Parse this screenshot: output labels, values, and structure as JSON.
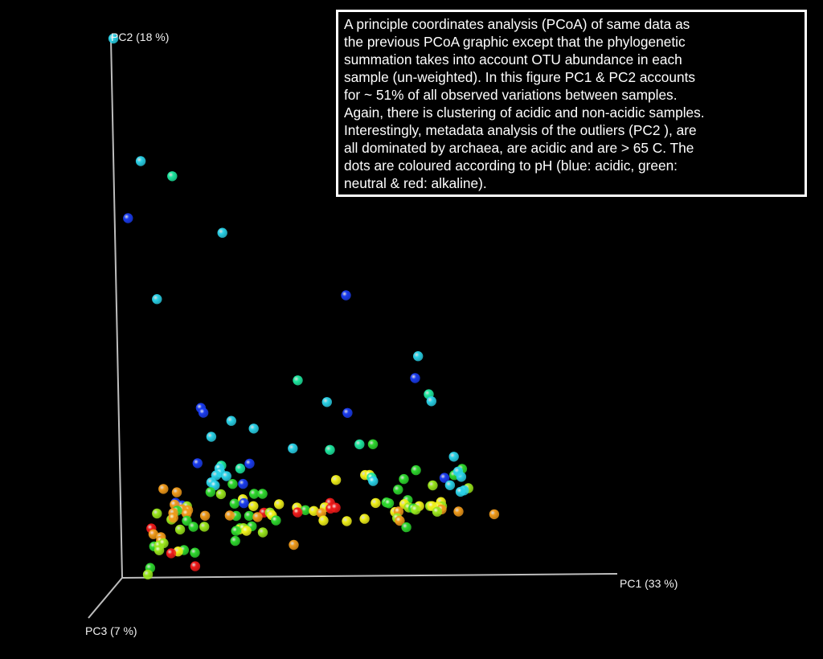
{
  "chart_data": {
    "type": "scatter",
    "title": "",
    "axes": {
      "x_label": "PC1 (33 %)",
      "y_label": "PC2 (18 %)",
      "z_label": "PC3 (7 %)"
    },
    "projection": "3d",
    "grid": false,
    "legend": "none",
    "colors": {
      "blue": "#1a3cf0",
      "cyan": "#2ad2e8",
      "teal": "#1ee8a0",
      "green": "#2ed82e",
      "lime": "#9ae61c",
      "yellow": "#f0f01a",
      "orange": "#f09a1a",
      "red": "#f01a1a"
    },
    "points": [
      {
        "x": 0.005,
        "y": 1.23,
        "ph": "cyan"
      },
      {
        "x": 0.055,
        "y": 0.95,
        "ph": "cyan"
      },
      {
        "x": 0.118,
        "y": 0.915,
        "ph": "teal"
      },
      {
        "x": 0.027,
        "y": 0.82,
        "ph": "blue"
      },
      {
        "x": 0.217,
        "y": 0.785,
        "ph": "cyan"
      },
      {
        "x": 0.082,
        "y": 0.635,
        "ph": "cyan"
      },
      {
        "x": 0.464,
        "y": 0.64,
        "ph": "blue"
      },
      {
        "x": 0.607,
        "y": 0.5,
        "ph": "cyan"
      },
      {
        "x": 0.6,
        "y": 0.45,
        "ph": "blue"
      },
      {
        "x": 0.363,
        "y": 0.447,
        "ph": "teal"
      },
      {
        "x": 0.421,
        "y": 0.397,
        "ph": "cyan"
      },
      {
        "x": 0.627,
        "y": 0.413,
        "ph": "teal"
      },
      {
        "x": 0.632,
        "y": 0.397,
        "ph": "cyan"
      },
      {
        "x": 0.166,
        "y": 0.386,
        "ph": "blue"
      },
      {
        "x": 0.171,
        "y": 0.375,
        "ph": "blue"
      },
      {
        "x": 0.462,
        "y": 0.372,
        "ph": "blue"
      },
      {
        "x": 0.227,
        "y": 0.356,
        "ph": "cyan"
      },
      {
        "x": 0.272,
        "y": 0.338,
        "ph": "cyan"
      },
      {
        "x": 0.186,
        "y": 0.32,
        "ph": "cyan"
      },
      {
        "x": 0.485,
        "y": 0.3,
        "ph": "teal"
      },
      {
        "x": 0.512,
        "y": 0.3,
        "ph": "green"
      },
      {
        "x": 0.35,
        "y": 0.292,
        "ph": "cyan"
      },
      {
        "x": 0.425,
        "y": 0.288,
        "ph": "teal"
      },
      {
        "x": 0.675,
        "y": 0.27,
        "ph": "cyan"
      },
      {
        "x": 0.157,
        "y": 0.26,
        "ph": "blue"
      },
      {
        "x": 0.262,
        "y": 0.258,
        "ph": "blue"
      },
      {
        "x": 0.205,
        "y": 0.254,
        "ph": "teal"
      },
      {
        "x": 0.201,
        "y": 0.248,
        "ph": "cyan"
      },
      {
        "x": 0.243,
        "y": 0.247,
        "ph": "teal"
      },
      {
        "x": 0.598,
        "y": 0.24,
        "ph": "green"
      },
      {
        "x": 0.691,
        "y": 0.242,
        "ph": "green"
      },
      {
        "x": 0.203,
        "y": 0.238,
        "ph": "cyan"
      },
      {
        "x": 0.194,
        "y": 0.232,
        "ph": "cyan"
      },
      {
        "x": 0.215,
        "y": 0.23,
        "ph": "cyan"
      },
      {
        "x": 0.495,
        "y": 0.23,
        "ph": "yellow"
      },
      {
        "x": 0.504,
        "y": 0.23,
        "ph": "yellow"
      },
      {
        "x": 0.508,
        "y": 0.224,
        "ph": "teal"
      },
      {
        "x": 0.511,
        "y": 0.216,
        "ph": "cyan"
      },
      {
        "x": 0.573,
        "y": 0.22,
        "ph": "green"
      },
      {
        "x": 0.675,
        "y": 0.228,
        "ph": "green"
      },
      {
        "x": 0.689,
        "y": 0.224,
        "ph": "cyan"
      },
      {
        "x": 0.683,
        "y": 0.236,
        "ph": "cyan"
      },
      {
        "x": 0.655,
        "y": 0.222,
        "ph": "blue"
      },
      {
        "x": 0.436,
        "y": 0.219,
        "ph": "yellow"
      },
      {
        "x": 0.184,
        "y": 0.216,
        "ph": "cyan"
      },
      {
        "x": 0.191,
        "y": 0.209,
        "ph": "cyan"
      },
      {
        "x": 0.227,
        "y": 0.212,
        "ph": "green"
      },
      {
        "x": 0.248,
        "y": 0.212,
        "ph": "blue"
      },
      {
        "x": 0.631,
        "y": 0.205,
        "ph": "lime"
      },
      {
        "x": 0.666,
        "y": 0.205,
        "ph": "cyan"
      },
      {
        "x": 0.703,
        "y": 0.198,
        "ph": "lime"
      },
      {
        "x": 0.694,
        "y": 0.193,
        "ph": "cyan"
      },
      {
        "x": 0.687,
        "y": 0.19,
        "ph": "cyan"
      },
      {
        "x": 0.087,
        "y": 0.202,
        "ph": "orange"
      },
      {
        "x": 0.114,
        "y": 0.194,
        "ph": "orange"
      },
      {
        "x": 0.182,
        "y": 0.194,
        "ph": "green"
      },
      {
        "x": 0.203,
        "y": 0.189,
        "ph": "lime"
      },
      {
        "x": 0.27,
        "y": 0.189,
        "ph": "green"
      },
      {
        "x": 0.287,
        "y": 0.189,
        "ph": "green"
      },
      {
        "x": 0.561,
        "y": 0.196,
        "ph": "green"
      },
      {
        "x": 0.247,
        "y": 0.177,
        "ph": "yellow"
      },
      {
        "x": 0.23,
        "y": 0.167,
        "ph": "green"
      },
      {
        "x": 0.249,
        "y": 0.168,
        "ph": "blue"
      },
      {
        "x": 0.58,
        "y": 0.172,
        "ph": "green"
      },
      {
        "x": 0.111,
        "y": 0.17,
        "ph": "blue"
      },
      {
        "x": 0.124,
        "y": 0.164,
        "ph": "blue"
      },
      {
        "x": 0.109,
        "y": 0.166,
        "ph": "orange"
      },
      {
        "x": 0.134,
        "y": 0.162,
        "ph": "lime"
      },
      {
        "x": 0.136,
        "y": 0.153,
        "ph": "orange"
      },
      {
        "x": 0.124,
        "y": 0.155,
        "ph": "orange"
      },
      {
        "x": 0.114,
        "y": 0.152,
        "ph": "green"
      },
      {
        "x": 0.073,
        "y": 0.146,
        "ph": "lime"
      },
      {
        "x": 0.268,
        "y": 0.161,
        "ph": "yellow"
      },
      {
        "x": 0.32,
        "y": 0.165,
        "ph": "yellow"
      },
      {
        "x": 0.515,
        "y": 0.166,
        "ph": "yellow"
      },
      {
        "x": 0.537,
        "y": 0.167,
        "ph": "green"
      },
      {
        "x": 0.542,
        "y": 0.165,
        "ph": "green"
      },
      {
        "x": 0.423,
        "y": 0.167,
        "ph": "red"
      },
      {
        "x": 0.573,
        "y": 0.163,
        "ph": "yellow"
      },
      {
        "x": 0.647,
        "y": 0.167,
        "ph": "yellow"
      },
      {
        "x": 0.625,
        "y": 0.158,
        "ph": "lime"
      },
      {
        "x": 0.649,
        "y": 0.157,
        "ph": "lime"
      },
      {
        "x": 0.64,
        "y": 0.156,
        "ph": "yellow"
      },
      {
        "x": 0.603,
        "y": 0.158,
        "ph": "yellow"
      },
      {
        "x": 0.629,
        "y": 0.158,
        "ph": "yellow"
      },
      {
        "x": 0.582,
        "y": 0.155,
        "ph": "lime"
      },
      {
        "x": 0.356,
        "y": 0.157,
        "ph": "yellow"
      },
      {
        "x": 0.412,
        "y": 0.157,
        "ph": "yellow"
      },
      {
        "x": 0.424,
        "y": 0.154,
        "ph": "red"
      },
      {
        "x": 0.434,
        "y": 0.156,
        "ph": "red"
      },
      {
        "x": 0.289,
        "y": 0.146,
        "ph": "red"
      },
      {
        "x": 0.301,
        "y": 0.146,
        "ph": "lime"
      },
      {
        "x": 0.305,
        "y": 0.14,
        "ph": "yellow"
      },
      {
        "x": 0.373,
        "y": 0.151,
        "ph": "green"
      },
      {
        "x": 0.39,
        "y": 0.149,
        "ph": "yellow"
      },
      {
        "x": 0.405,
        "y": 0.144,
        "ph": "orange"
      },
      {
        "x": 0.357,
        "y": 0.146,
        "ph": "red"
      },
      {
        "x": 0.591,
        "y": 0.153,
        "ph": "green"
      },
      {
        "x": 0.596,
        "y": 0.15,
        "ph": "lime"
      },
      {
        "x": 0.554,
        "y": 0.145,
        "ph": "yellow"
      },
      {
        "x": 0.561,
        "y": 0.146,
        "ph": "orange"
      },
      {
        "x": 0.648,
        "y": 0.15,
        "ph": "orange"
      },
      {
        "x": 0.639,
        "y": 0.145,
        "ph": "lime"
      },
      {
        "x": 0.682,
        "y": 0.145,
        "ph": "orange"
      },
      {
        "x": 0.233,
        "y": 0.139,
        "ph": "green"
      },
      {
        "x": 0.22,
        "y": 0.14,
        "ph": "orange"
      },
      {
        "x": 0.259,
        "y": 0.139,
        "ph": "green"
      },
      {
        "x": 0.17,
        "y": 0.14,
        "ph": "orange"
      },
      {
        "x": 0.106,
        "y": 0.147,
        "ph": "orange"
      },
      {
        "x": 0.133,
        "y": 0.145,
        "ph": "orange"
      },
      {
        "x": 0.276,
        "y": 0.136,
        "ph": "orange"
      },
      {
        "x": 0.313,
        "y": 0.128,
        "ph": "green"
      },
      {
        "x": 0.409,
        "y": 0.127,
        "ph": "yellow"
      },
      {
        "x": 0.456,
        "y": 0.125,
        "ph": "yellow"
      },
      {
        "x": 0.558,
        "y": 0.131,
        "ph": "lime"
      },
      {
        "x": 0.492,
        "y": 0.13,
        "ph": "yellow"
      },
      {
        "x": 0.563,
        "y": 0.125,
        "ph": "orange"
      },
      {
        "x": 0.754,
        "y": 0.138,
        "ph": "orange"
      },
      {
        "x": 0.102,
        "y": 0.132,
        "ph": "lime"
      },
      {
        "x": 0.106,
        "y": 0.136,
        "ph": "orange"
      },
      {
        "x": 0.133,
        "y": 0.129,
        "ph": "green"
      },
      {
        "x": 0.576,
        "y": 0.11,
        "ph": "green"
      },
      {
        "x": 0.264,
        "y": 0.115,
        "ph": "green"
      },
      {
        "x": 0.24,
        "y": 0.111,
        "ph": "green"
      },
      {
        "x": 0.239,
        "y": 0.108,
        "ph": "yellow"
      },
      {
        "x": 0.247,
        "y": 0.111,
        "ph": "lime"
      },
      {
        "x": 0.232,
        "y": 0.105,
        "ph": "green"
      },
      {
        "x": 0.253,
        "y": 0.105,
        "ph": "yellow"
      },
      {
        "x": 0.146,
        "y": 0.115,
        "ph": "green"
      },
      {
        "x": 0.168,
        "y": 0.115,
        "ph": "lime"
      },
      {
        "x": 0.119,
        "y": 0.109,
        "ph": "lime"
      },
      {
        "x": 0.286,
        "y": 0.101,
        "ph": "lime"
      },
      {
        "x": 0.061,
        "y": 0.112,
        "ph": "red"
      },
      {
        "x": 0.065,
        "y": 0.099,
        "ph": "orange"
      },
      {
        "x": 0.08,
        "y": 0.092,
        "ph": "orange"
      },
      {
        "x": 0.08,
        "y": 0.084,
        "ph": "orange"
      },
      {
        "x": 0.348,
        "y": 0.072,
        "ph": "orange"
      },
      {
        "x": 0.066,
        "y": 0.071,
        "ph": "green"
      },
      {
        "x": 0.076,
        "y": 0.073,
        "ph": "lime"
      },
      {
        "x": 0.085,
        "y": 0.078,
        "ph": "lime"
      },
      {
        "x": 0.076,
        "y": 0.062,
        "ph": "lime"
      },
      {
        "x": 0.126,
        "y": 0.062,
        "ph": "green"
      },
      {
        "x": 0.114,
        "y": 0.059,
        "ph": "yellow"
      },
      {
        "x": 0.1,
        "y": 0.055,
        "ph": "red"
      },
      {
        "x": 0.148,
        "y": 0.056,
        "ph": "green"
      },
      {
        "x": 0.23,
        "y": 0.082,
        "ph": "green"
      },
      {
        "x": 0.148,
        "y": 0.025,
        "ph": "red"
      },
      {
        "x": 0.057,
        "y": 0.022,
        "ph": "green"
      },
      {
        "x": 0.052,
        "y": 0.007,
        "ph": "lime"
      }
    ]
  },
  "caption": {
    "text": "A principle  coordinates analysis (PCoA) of same data as\nthe previous PCoA graphic except that the phylogenetic\nsummation takes into account OTU abundance in each\nsample (un-weighted). In this figure PC1 & PC2 accounts\nfor ~ 51% of all observed variations between samples.\nAgain, there is clustering of acidic and non-acidic samples.\nInterestingly, metadata analysis of the outliers (PC2 ), are\nall dominated by archaea, are acidic and are > 65 C. The\ndots are coloured according to pH (blue: acidic, green:\nneutral & red: alkaline)."
  }
}
